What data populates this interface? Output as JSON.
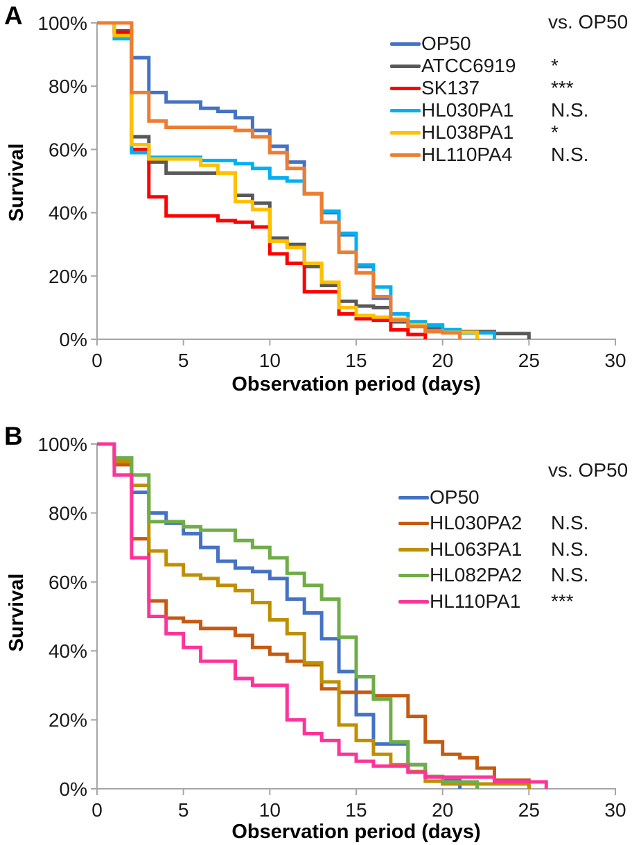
{
  "chart_data": [
    {
      "type": "line",
      "subtype": "step-survival",
      "panel": "A",
      "xlabel": "Observation period (days)",
      "ylabel": "Survival",
      "legend_header": "vs. OP50",
      "xlim": [
        0,
        30
      ],
      "ylim": [
        0,
        100
      ],
      "x_ticks": [
        0,
        5,
        10,
        15,
        20,
        25,
        30
      ],
      "y_tick_labels": [
        "100%",
        "80%",
        "60%",
        "40%",
        "20%",
        "0%"
      ],
      "grid": false,
      "legend_position": "upper right",
      "axis_color": "#A6A6A6",
      "series": [
        {
          "name": "OP50",
          "color": "#4472C4",
          "significance_vs_op50": "",
          "points": [
            [
              0,
              100
            ],
            [
              1,
              97
            ],
            [
              2,
              89
            ],
            [
              3,
              78
            ],
            [
              4,
              75
            ],
            [
              6,
              73
            ],
            [
              7,
              72
            ],
            [
              8,
              70
            ],
            [
              9,
              66
            ],
            [
              10,
              61
            ],
            [
              11,
              56
            ],
            [
              12,
              46
            ],
            [
              13,
              40
            ],
            [
              14,
              33
            ],
            [
              15,
              23
            ],
            [
              16,
              13
            ],
            [
              17,
              5.5
            ],
            [
              18,
              5
            ],
            [
              19,
              4
            ],
            [
              20,
              3
            ],
            [
              21,
              2
            ],
            [
              22,
              0
            ]
          ]
        },
        {
          "name": "ATCC6919",
          "color": "#595959",
          "significance_vs_op50": "*",
          "points": [
            [
              0,
              100
            ],
            [
              1,
              97.5
            ],
            [
              2,
              64
            ],
            [
              3,
              56
            ],
            [
              4,
              52.5
            ],
            [
              8,
              45.5
            ],
            [
              9,
              43
            ],
            [
              10,
              32
            ],
            [
              11,
              30
            ],
            [
              12,
              23
            ],
            [
              13,
              17
            ],
            [
              14,
              12
            ],
            [
              15,
              10.5
            ],
            [
              16,
              10
            ],
            [
              17,
              5.5
            ],
            [
              19,
              3
            ],
            [
              21,
              2.4
            ],
            [
              23,
              1.8
            ],
            [
              25,
              0
            ]
          ]
        },
        {
          "name": "SK137",
          "color": "#FF0000",
          "significance_vs_op50": "***",
          "points": [
            [
              0,
              100
            ],
            [
              1,
              97
            ],
            [
              2,
              60
            ],
            [
              3,
              45
            ],
            [
              4,
              39
            ],
            [
              7,
              37.5
            ],
            [
              8,
              37
            ],
            [
              9,
              35.5
            ],
            [
              10,
              27
            ],
            [
              11,
              24
            ],
            [
              12,
              15
            ],
            [
              14,
              8
            ],
            [
              15,
              6.5
            ],
            [
              16,
              6
            ],
            [
              17,
              3
            ],
            [
              18,
              1.5
            ],
            [
              19,
              0
            ]
          ]
        },
        {
          "name": "HL030PA1",
          "color": "#00B0F0",
          "significance_vs_op50": "N.S.",
          "points": [
            [
              0,
              100
            ],
            [
              1,
              95
            ],
            [
              2,
              59
            ],
            [
              3,
              57.5
            ],
            [
              6,
              56.5
            ],
            [
              8,
              55.5
            ],
            [
              9,
              54
            ],
            [
              10,
              51
            ],
            [
              11,
              50
            ],
            [
              12,
              46
            ],
            [
              13,
              40.5
            ],
            [
              14,
              33.5
            ],
            [
              15,
              23.5
            ],
            [
              16,
              16.5
            ],
            [
              17,
              8
            ],
            [
              18,
              5.5
            ],
            [
              19,
              4.5
            ],
            [
              20,
              3
            ],
            [
              21,
              2
            ],
            [
              23,
              0
            ]
          ]
        },
        {
          "name": "HL038PA1",
          "color": "#FFC000",
          "significance_vs_op50": "*",
          "points": [
            [
              0,
              100
            ],
            [
              1,
              96
            ],
            [
              2,
              61.5
            ],
            [
              3,
              57
            ],
            [
              6,
              55
            ],
            [
              7,
              52.5
            ],
            [
              8,
              43.5
            ],
            [
              9,
              41
            ],
            [
              10,
              31
            ],
            [
              11,
              29
            ],
            [
              12,
              24
            ],
            [
              13,
              18
            ],
            [
              14,
              10
            ],
            [
              15,
              7.5
            ],
            [
              16,
              7
            ],
            [
              17,
              6.4
            ],
            [
              18,
              4.6
            ],
            [
              19,
              2.6
            ],
            [
              20,
              2.2
            ],
            [
              22,
              0
            ]
          ]
        },
        {
          "name": "HL110PA4",
          "color": "#ED7D31",
          "significance_vs_op50": "N.S.",
          "points": [
            [
              0,
              100
            ],
            [
              2,
              78
            ],
            [
              3,
              69
            ],
            [
              4,
              67
            ],
            [
              8,
              66
            ],
            [
              9,
              64
            ],
            [
              10,
              59
            ],
            [
              11,
              54
            ],
            [
              12,
              46
            ],
            [
              13,
              37
            ],
            [
              14,
              27.5
            ],
            [
              15,
              21
            ],
            [
              16,
              13.5
            ],
            [
              17,
              6
            ],
            [
              18,
              4
            ],
            [
              19,
              2.4
            ],
            [
              20,
              2
            ],
            [
              21,
              0
            ]
          ]
        }
      ]
    },
    {
      "type": "line",
      "subtype": "step-survival",
      "panel": "B",
      "xlabel": "Observation period (days)",
      "ylabel": "Survival",
      "legend_header": "vs. OP50",
      "xlim": [
        0,
        30
      ],
      "ylim": [
        0,
        100
      ],
      "x_ticks": [
        0,
        5,
        10,
        15,
        20,
        25,
        30
      ],
      "y_tick_labels": [
        "100%",
        "80%",
        "60%",
        "40%",
        "20%",
        "0%"
      ],
      "grid": false,
      "legend_position": "upper right",
      "axis_color": "#A6A6A6",
      "series": [
        {
          "name": "OP50",
          "color": "#4472C4",
          "significance_vs_op50": "",
          "points": [
            [
              0,
              100
            ],
            [
              1,
              96
            ],
            [
              2,
              86
            ],
            [
              3,
              80
            ],
            [
              4,
              77
            ],
            [
              5,
              74
            ],
            [
              6,
              70
            ],
            [
              7,
              66
            ],
            [
              8,
              64
            ],
            [
              9,
              63
            ],
            [
              10,
              61
            ],
            [
              11,
              55
            ],
            [
              12,
              51
            ],
            [
              13,
              43.5
            ],
            [
              14,
              34
            ],
            [
              15,
              21.5
            ],
            [
              16,
              13
            ],
            [
              18,
              7
            ],
            [
              19,
              3.5
            ],
            [
              20,
              2.4
            ],
            [
              21,
              0
            ]
          ]
        },
        {
          "name": "HL030PA2",
          "color": "#C55A11",
          "significance_vs_op50": "N.S.",
          "points": [
            [
              0,
              100
            ],
            [
              1,
              94
            ],
            [
              2,
              72.5
            ],
            [
              3,
              54.5
            ],
            [
              4,
              49.5
            ],
            [
              5,
              48.5
            ],
            [
              6,
              46.5
            ],
            [
              8,
              44.5
            ],
            [
              9,
              41
            ],
            [
              10,
              39
            ],
            [
              11,
              37
            ],
            [
              12,
              36
            ],
            [
              13,
              29
            ],
            [
              14,
              28
            ],
            [
              16,
              27
            ],
            [
              18,
              21
            ],
            [
              19,
              13.6
            ],
            [
              20,
              10
            ],
            [
              21,
              9
            ],
            [
              22,
              6
            ],
            [
              23,
              2.5
            ],
            [
              25,
              0
            ]
          ]
        },
        {
          "name": "HL063PA1",
          "color": "#BF8F00",
          "significance_vs_op50": "N.S.",
          "points": [
            [
              0,
              100
            ],
            [
              1,
              95
            ],
            [
              2,
              88
            ],
            [
              3,
              69
            ],
            [
              4,
              65
            ],
            [
              5,
              62
            ],
            [
              6,
              61
            ],
            [
              7,
              59
            ],
            [
              8,
              57.5
            ],
            [
              9,
              54
            ],
            [
              10,
              49
            ],
            [
              11,
              45
            ],
            [
              12,
              36.5
            ],
            [
              13,
              31
            ],
            [
              14,
              18.5
            ],
            [
              15,
              14
            ],
            [
              16,
              10
            ],
            [
              17,
              7
            ],
            [
              18,
              5
            ],
            [
              19,
              2.2
            ],
            [
              20,
              1.4
            ],
            [
              25,
              0
            ]
          ]
        },
        {
          "name": "HL082PA2",
          "color": "#70AD47",
          "significance_vs_op50": "N.S.",
          "points": [
            [
              0,
              100
            ],
            [
              1,
              96
            ],
            [
              2,
              91
            ],
            [
              3,
              77.5
            ],
            [
              5,
              76
            ],
            [
              6,
              75
            ],
            [
              8,
              72
            ],
            [
              9,
              70
            ],
            [
              10,
              67
            ],
            [
              11,
              62.5
            ],
            [
              12,
              59
            ],
            [
              13,
              55
            ],
            [
              14,
              44
            ],
            [
              15,
              32.5
            ],
            [
              16,
              26
            ],
            [
              17,
              13.6
            ],
            [
              18,
              7
            ],
            [
              19,
              3.6
            ],
            [
              20,
              2
            ],
            [
              22,
              0
            ]
          ]
        },
        {
          "name": "HL110PA1",
          "color": "#FF3399",
          "significance_vs_op50": "***",
          "points": [
            [
              0,
              100
            ],
            [
              1,
              91
            ],
            [
              2,
              67
            ],
            [
              3,
              50
            ],
            [
              4,
              45
            ],
            [
              5,
              41
            ],
            [
              6,
              37
            ],
            [
              8,
              32
            ],
            [
              9,
              30
            ],
            [
              11,
              20
            ],
            [
              12,
              16
            ],
            [
              13,
              14
            ],
            [
              14,
              10
            ],
            [
              15,
              8
            ],
            [
              16,
              6.6
            ],
            [
              18,
              4.8
            ],
            [
              19,
              3.4
            ],
            [
              23,
              2
            ],
            [
              26,
              0
            ]
          ]
        }
      ]
    }
  ]
}
